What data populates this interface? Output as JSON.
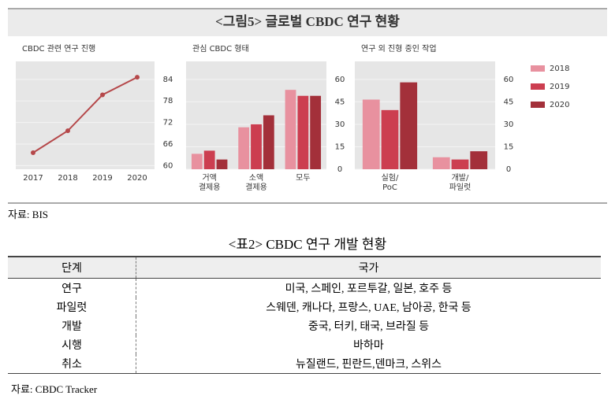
{
  "figure_title": "<그림5> 글로벌 CBDC 연구 현황",
  "chart_data": [
    {
      "type": "line",
      "title": "CBDC 관련 연구 진행",
      "categories": [
        "2017",
        "2018",
        "2019",
        "2020"
      ],
      "values": [
        63.6,
        69.7,
        79.7,
        84.6
      ],
      "color": "#b5484a",
      "ylim": [
        59,
        89
      ],
      "yticks": [
        60,
        66,
        72,
        78,
        84
      ]
    },
    {
      "type": "bar",
      "title": "관심 CBDC 형태",
      "categories": [
        "거액\n결제용",
        "소액\n결제용",
        "모두"
      ],
      "series": [
        {
          "name": "2018",
          "color": "#e8919f",
          "values": [
            10.3,
            28,
            53
          ]
        },
        {
          "name": "2019",
          "color": "#cc3e50",
          "values": [
            12.4,
            30,
            49
          ]
        },
        {
          "name": "2020",
          "color": "#a3303a",
          "values": [
            6.5,
            36,
            49
          ]
        }
      ],
      "ylim": [
        0,
        72
      ],
      "yticks": [
        0,
        15,
        30,
        45,
        60
      ]
    },
    {
      "type": "bar",
      "title": "연구 외 진형 중인 작업",
      "categories": [
        "실험/\nPoC",
        "개발/\n파일럿"
      ],
      "series": [
        {
          "name": "2018",
          "color": "#e8919f",
          "values": [
            46.5,
            8
          ]
        },
        {
          "name": "2019",
          "color": "#cc3e50",
          "values": [
            39.5,
            6.5
          ]
        },
        {
          "name": "2020",
          "color": "#a3303a",
          "values": [
            58,
            12
          ]
        }
      ],
      "ylim": [
        0,
        72
      ],
      "yticks": [
        0,
        15,
        30,
        45,
        60
      ],
      "legend": "right"
    }
  ],
  "figure_source": "자료: BIS",
  "table": {
    "title": "<표2> CBDC 연구 개발 현황",
    "header": [
      "단계",
      "국가"
    ],
    "rows": [
      [
        "연구",
        "미국, 스페인, 포르투갈, 일본, 호주 등"
      ],
      [
        "파일럿",
        "스웨덴, 캐나다, 프랑스, UAE, 남아공, 한국 등"
      ],
      [
        "개발",
        "중국, 터키, 태국, 브라질 등"
      ],
      [
        "시행",
        "바하마"
      ],
      [
        "취소",
        "뉴질랜드, 핀란드,덴마크, 스위스"
      ]
    ],
    "source": "자료: CBDC Tracker"
  }
}
